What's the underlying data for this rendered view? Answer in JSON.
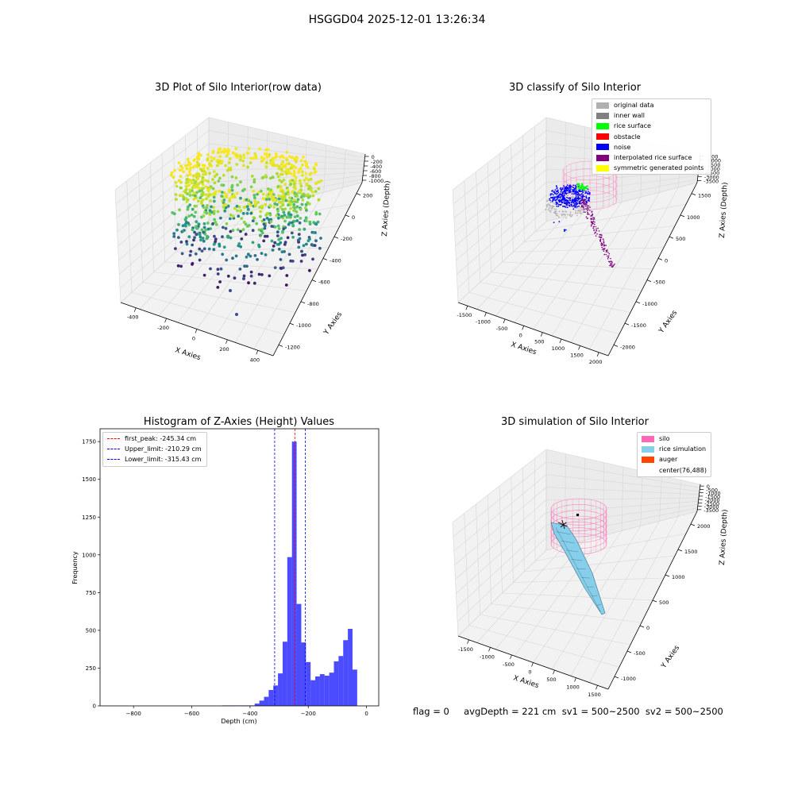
{
  "figure_title": "HSGGD04 2025-12-01 13:26:34",
  "footer_status": "flag = 0     avgDepth = 221 cm  sv1 = 500~2500  sv2 = 500~2500",
  "colors": {
    "original_data": "#b0b0b0",
    "inner_wall": "#808080",
    "rice_surface": "#00ff00",
    "obstacle": "#ff0000",
    "noise": "#0000ff",
    "interpolated_rice_surface": "#800080",
    "symmetric_generated_points": "#ffff00",
    "silo": "#ff69b4",
    "rice_simulation": "#87ceeb",
    "auger": "#ff4500",
    "histogram_bar": "#0000ff",
    "first_peak_line": "#ff0000",
    "limit_lines": "#0000ff"
  },
  "chart_data": [
    {
      "type": "scatter",
      "projection": "3d",
      "title": "3D Plot of Silo Interior(row data)",
      "xlabel": "X Axies",
      "ylabel": "Y Axies",
      "zlabel": "Z Axies (Depth)",
      "x_ticks": [
        -400,
        -200,
        0,
        200,
        400
      ],
      "y_ticks": [
        200,
        0,
        -200,
        -400,
        -600,
        -800,
        -1000,
        -1200
      ],
      "z_ticks": [
        0,
        -200,
        -400,
        -600,
        -800,
        -1000
      ],
      "xlim": [
        -500,
        500
      ],
      "ylim": [
        -1300,
        300
      ],
      "zlim": [
        -1100,
        0
      ],
      "colormap": "viridis",
      "grid": true,
      "description_points": "ring-shaped point cloud of silo interior, yellow near top (z≈0) to dark blue deeper (z≈-1000)"
    },
    {
      "type": "scatter",
      "projection": "3d",
      "title": "3D classify of Silo Interior",
      "xlabel": "X Axies",
      "ylabel": "Y Axies",
      "zlabel": "Z Axies (Depth)",
      "x_ticks": [
        -1500,
        -1000,
        -500,
        0,
        500,
        1000,
        1500,
        2000
      ],
      "y_ticks": [
        1500,
        1000,
        500,
        0,
        -500,
        -1000,
        -1500,
        -2000
      ],
      "z_ticks": [
        -500,
        -1000,
        -1500,
        -2000,
        -2500,
        -3000,
        -3500
      ],
      "grid": true,
      "legend": {
        "placement": "upper right",
        "entries": [
          {
            "label": "original data",
            "color_key": "original_data"
          },
          {
            "label": "inner wall",
            "color_key": "inner_wall"
          },
          {
            "label": "rice surface",
            "color_key": "rice_surface"
          },
          {
            "label": "obstacle",
            "color_key": "obstacle"
          },
          {
            "label": "noise",
            "color_key": "noise"
          },
          {
            "label": "interpolated rice surface",
            "color_key": "interpolated_rice_surface"
          },
          {
            "label": "symmetric generated points",
            "color_key": "symmetric_generated_points"
          }
        ]
      }
    },
    {
      "type": "bar",
      "title": "Histogram of Z-Axies (Height) Values",
      "xlabel": "Depth (cm)",
      "ylabel": "Frequency",
      "xlim": [
        -915,
        42
      ],
      "ylim": [
        0,
        1835
      ],
      "x_ticks": [
        -800,
        -600,
        -400,
        -200,
        0
      ],
      "y_ticks": [
        0,
        250,
        500,
        750,
        1000,
        1250,
        1500,
        1750
      ],
      "bin_width": 16,
      "bin_left_edges": [
        -496,
        -480,
        -464,
        -448,
        -432,
        -416,
        -400,
        -384,
        -368,
        -352,
        -336,
        -320,
        -304,
        -288,
        -272,
        -256,
        -240,
        -224,
        -208,
        -192,
        -176,
        -160,
        -144,
        -128,
        -112,
        -96,
        -80,
        -64,
        -48,
        -32,
        -16
      ],
      "values": [
        3,
        3,
        3,
        3,
        3,
        3,
        3,
        15,
        35,
        60,
        105,
        135,
        215,
        425,
        985,
        1750,
        675,
        420,
        290,
        170,
        195,
        210,
        200,
        220,
        295,
        330,
        435,
        510,
        240,
        0,
        0
      ],
      "reference_lines": [
        {
          "label": "first_peak: -245.34 cm",
          "x": -245.34,
          "color_key": "first_peak_line"
        },
        {
          "label": "Upper_limit: -210.29 cm",
          "x": -210.29,
          "color_key": "limit_lines"
        },
        {
          "label": "Lower_limit: -315.43 cm",
          "x": -315.43,
          "color_key": "limit_lines"
        }
      ],
      "legend": {
        "placement": "upper left"
      }
    },
    {
      "type": "surface",
      "projection": "3d",
      "title": "3D simulation of Silo Interior",
      "xlabel": "X Axies",
      "ylabel": "Y Axies",
      "zlabel": "Z Axies (Depth)",
      "x_ticks": [
        -1500,
        -1000,
        -500,
        0,
        500,
        1000,
        1500
      ],
      "y_ticks": [
        2000,
        1500,
        1000,
        500,
        0,
        -500,
        -1000
      ],
      "z_ticks": [
        0,
        -500,
        -1000,
        -1500,
        -2000,
        -2500,
        -3000,
        -3500
      ],
      "grid": true,
      "legend": {
        "placement": "upper right",
        "entries": [
          {
            "label": "silo",
            "color_key": "silo"
          },
          {
            "label": "rice simulation",
            "color_key": "rice_simulation"
          },
          {
            "label": "auger",
            "color_key": "auger"
          },
          {
            "label": "center(76,488)",
            "color_key": ""
          }
        ]
      }
    }
  ]
}
